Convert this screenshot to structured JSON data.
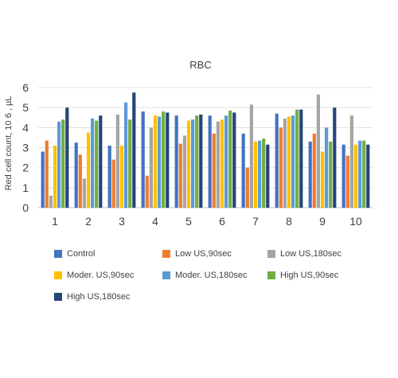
{
  "chart_data": {
    "type": "bar",
    "title": "RBC",
    "xlabel": "",
    "ylabel": "Red cell count, 10 6 , µL",
    "categories": [
      "1",
      "2",
      "3",
      "4",
      "5",
      "6",
      "7",
      "8",
      "9",
      "10"
    ],
    "ylim": [
      0,
      6
    ],
    "yticks": [
      "0",
      "1",
      "2",
      "3",
      "4",
      "5",
      "6"
    ],
    "grid": true,
    "legend_position": "bottom",
    "series": [
      {
        "name": "Control",
        "color": "#4472C4",
        "values": [
          2.8,
          3.25,
          3.1,
          4.8,
          4.6,
          4.6,
          3.7,
          4.7,
          3.3,
          3.15
        ]
      },
      {
        "name": "Low US,90sec",
        "color": "#ED7D31",
        "values": [
          3.35,
          2.65,
          2.4,
          1.6,
          3.2,
          3.7,
          2.0,
          4.0,
          3.7,
          2.6
        ]
      },
      {
        "name": "Low US,180sec",
        "color": "#A5A5A5",
        "values": [
          0.6,
          1.45,
          4.65,
          4.0,
          3.6,
          4.3,
          5.15,
          4.45,
          5.65,
          4.6
        ]
      },
      {
        "name": "Moder. US,90sec",
        "color": "#FFC000",
        "values": [
          3.1,
          3.75,
          3.1,
          4.6,
          4.35,
          4.4,
          3.3,
          4.55,
          2.8,
          3.15
        ]
      },
      {
        "name": "Moder. US,180sec",
        "color": "#5B9BD5",
        "values": [
          4.3,
          4.45,
          5.25,
          4.55,
          4.4,
          4.6,
          3.35,
          4.6,
          4.0,
          3.35
        ]
      },
      {
        "name": "High US,90sec",
        "color": "#70AD47",
        "values": [
          4.4,
          4.35,
          4.4,
          4.8,
          4.6,
          4.85,
          3.45,
          4.9,
          3.3,
          3.35
        ]
      },
      {
        "name": "High US,180sec",
        "color": "#264478",
        "values": [
          5.0,
          4.6,
          5.75,
          4.75,
          4.65,
          4.75,
          3.15,
          4.9,
          5.0,
          3.15
        ]
      }
    ]
  }
}
